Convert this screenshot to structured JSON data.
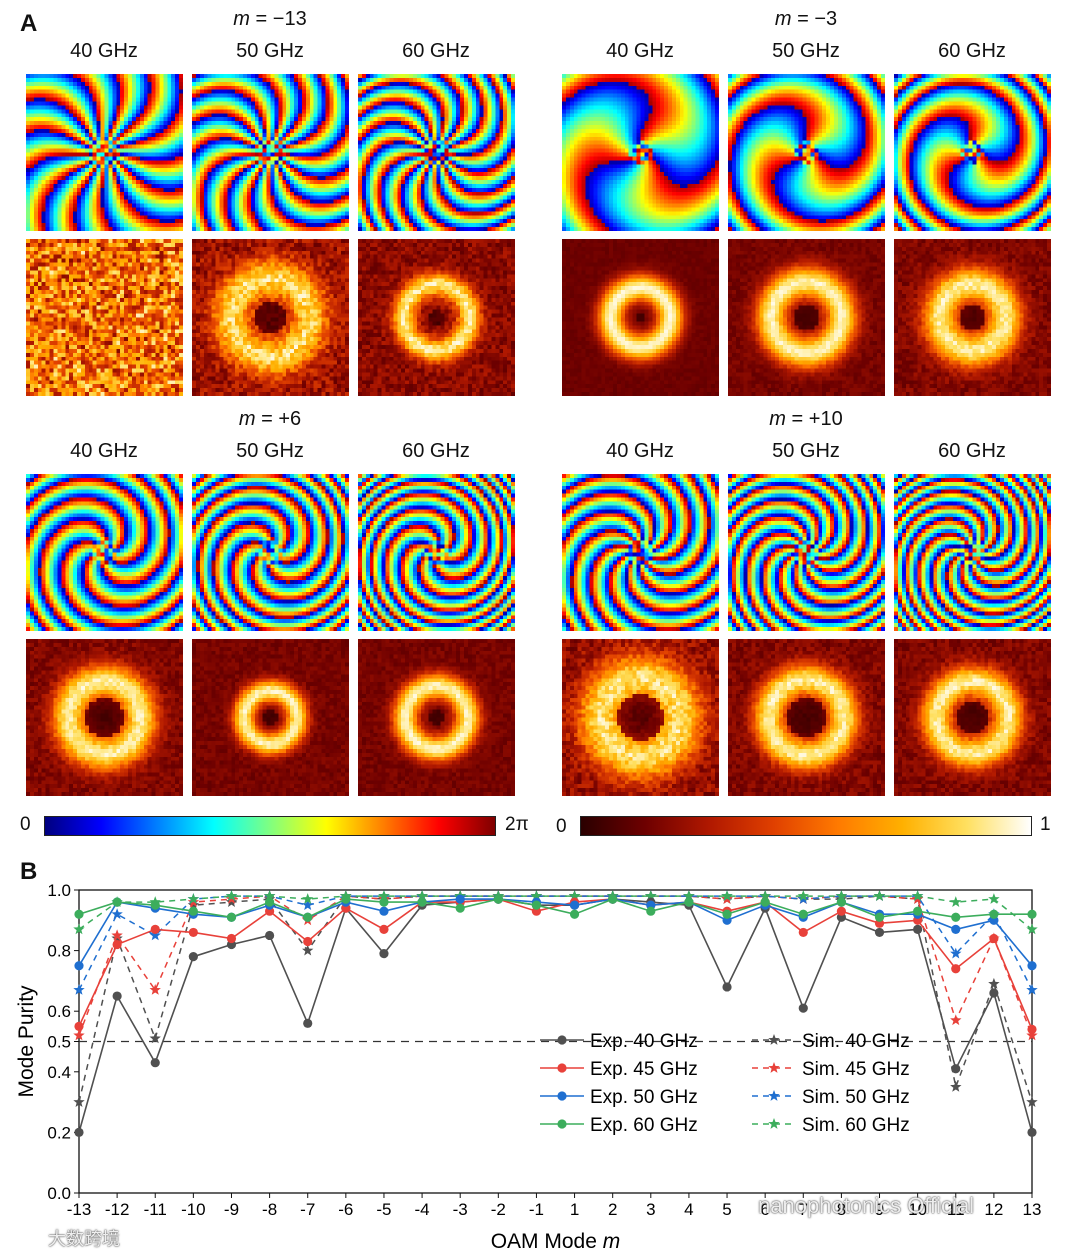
{
  "panel_a": {
    "letter": "A",
    "phase_colormap": [
      "#00007f",
      "#0000ff",
      "#0080ff",
      "#00ffff",
      "#80ff80",
      "#ffff00",
      "#ff8000",
      "#ff0000",
      "#7f0000"
    ],
    "intensity_colormap": [
      "#2a0000",
      "#6e0000",
      "#b01800",
      "#e04000",
      "#ff7a00",
      "#ffb000",
      "#ffe060",
      "#ffffff"
    ],
    "phase_bar": {
      "min": "0",
      "max": "2π"
    },
    "intensity_bar": {
      "min": "0",
      "max": "1"
    },
    "groups": [
      {
        "m_prefix": "m",
        "m_value": " = −13",
        "charge": -13,
        "freqs": [
          "40 GHz",
          "50 GHz",
          "60 GHz"
        ],
        "intensity": [
          {
            "r": 0.0,
            "w": 0.5,
            "core": 0.1,
            "noise": 0.7
          },
          {
            "r": 0.5,
            "w": 0.24,
            "core": 0.2,
            "noise": 0.3
          },
          {
            "r": 0.42,
            "w": 0.15,
            "core": 0.1,
            "noise": 0.2
          }
        ]
      },
      {
        "m_prefix": "m",
        "m_value": " = −3",
        "charge": -3,
        "freqs": [
          "40 GHz",
          "50 GHz",
          "60 GHz"
        ],
        "intensity": [
          {
            "r": 0.38,
            "w": 0.17,
            "core": 0.05,
            "noise": 0.05
          },
          {
            "r": 0.45,
            "w": 0.2,
            "core": 0.15,
            "noise": 0.1
          },
          {
            "r": 0.42,
            "w": 0.22,
            "core": 0.15,
            "noise": 0.15
          }
        ]
      },
      {
        "m_prefix": "m",
        "m_value": " = +6",
        "charge": 6,
        "freqs": [
          "40 GHz",
          "50 GHz",
          "60 GHz"
        ],
        "intensity": [
          {
            "r": 0.46,
            "w": 0.22,
            "core": 0.25,
            "noise": 0.15
          },
          {
            "r": 0.34,
            "w": 0.14,
            "core": 0.1,
            "noise": 0.1
          },
          {
            "r": 0.4,
            "w": 0.16,
            "core": 0.1,
            "noise": 0.1
          }
        ]
      },
      {
        "m_prefix": "m",
        "m_value": " = +10",
        "charge": 10,
        "freqs": [
          "40 GHz",
          "50 GHz",
          "60 GHz"
        ],
        "intensity": [
          {
            "r": 0.5,
            "w": 0.3,
            "core": 0.3,
            "noise": 0.25
          },
          {
            "r": 0.48,
            "w": 0.2,
            "core": 0.25,
            "noise": 0.15
          },
          {
            "r": 0.46,
            "w": 0.2,
            "core": 0.2,
            "noise": 0.15
          }
        ]
      }
    ]
  },
  "panel_b": {
    "letter": "B"
  },
  "chart_data": {
    "type": "line",
    "xlabel_prefix": "OAM Mode ",
    "xlabel_var": "m",
    "ylabel": "Mode Purity",
    "ylim": [
      0,
      1
    ],
    "yticks": [
      "0.0",
      "0.2",
      "0.4",
      "0.5",
      "0.6",
      "0.8",
      "1.0"
    ],
    "ytick_values": [
      0,
      0.2,
      0.4,
      0.5,
      0.6,
      0.8,
      1.0
    ],
    "categories": [
      "-13",
      "-12",
      "-11",
      "-10",
      "-9",
      "-8",
      "-7",
      "-6",
      "-5",
      "-4",
      "-3",
      "-2",
      "-1",
      "1",
      "2",
      "3",
      "4",
      "5",
      "6",
      "7",
      "8",
      "9",
      "10",
      "11",
      "12",
      "13"
    ],
    "category_values": [
      -13,
      -12,
      -11,
      -10,
      -9,
      -8,
      -7,
      -6,
      -5,
      -4,
      -3,
      -2,
      -1,
      1,
      2,
      3,
      4,
      5,
      6,
      7,
      8,
      9,
      10,
      11,
      12,
      13
    ],
    "threshold": 0.5,
    "grid": false,
    "legend_position": "bottom-right",
    "series": [
      {
        "name": "Exp. 40 GHz",
        "kind": "exp",
        "color": "#505050",
        "values": [
          0.2,
          0.65,
          0.43,
          0.78,
          0.82,
          0.85,
          0.56,
          0.94,
          0.79,
          0.95,
          0.96,
          0.97,
          0.95,
          0.95,
          0.97,
          0.96,
          0.95,
          0.68,
          0.94,
          0.61,
          0.91,
          0.86,
          0.87,
          0.41,
          0.66,
          0.2
        ]
      },
      {
        "name": "Exp. 45 GHz",
        "kind": "exp",
        "color": "#e8413a",
        "values": [
          0.55,
          0.82,
          0.87,
          0.86,
          0.84,
          0.93,
          0.83,
          0.94,
          0.87,
          0.96,
          0.96,
          0.97,
          0.93,
          0.96,
          0.97,
          0.95,
          0.96,
          0.93,
          0.96,
          0.86,
          0.93,
          0.89,
          0.9,
          0.74,
          0.84,
          0.54
        ]
      },
      {
        "name": "Exp. 50 GHz",
        "kind": "exp",
        "color": "#1f6fd0",
        "values": [
          0.75,
          0.96,
          0.94,
          0.92,
          0.91,
          0.95,
          0.91,
          0.96,
          0.93,
          0.96,
          0.97,
          0.97,
          0.96,
          0.95,
          0.97,
          0.95,
          0.96,
          0.9,
          0.95,
          0.91,
          0.96,
          0.92,
          0.92,
          0.87,
          0.9,
          0.75
        ]
      },
      {
        "name": "Exp. 60 GHz",
        "kind": "exp",
        "color": "#3cad5c",
        "values": [
          0.92,
          0.96,
          0.95,
          0.93,
          0.91,
          0.96,
          0.91,
          0.97,
          0.96,
          0.96,
          0.94,
          0.97,
          0.95,
          0.92,
          0.97,
          0.93,
          0.96,
          0.92,
          0.96,
          0.92,
          0.96,
          0.91,
          0.93,
          0.91,
          0.92,
          0.92
        ]
      },
      {
        "name": "Sim. 40 GHz",
        "kind": "sim",
        "color": "#505050",
        "values": [
          0.3,
          0.84,
          0.51,
          0.95,
          0.96,
          0.97,
          0.8,
          0.98,
          0.97,
          0.98,
          0.98,
          0.98,
          0.98,
          0.98,
          0.98,
          0.98,
          0.98,
          0.97,
          0.98,
          0.97,
          0.97,
          0.98,
          0.97,
          0.35,
          0.69,
          0.3
        ]
      },
      {
        "name": "Sim. 45 GHz",
        "kind": "sim",
        "color": "#e8413a",
        "values": [
          0.52,
          0.85,
          0.67,
          0.96,
          0.97,
          0.98,
          0.9,
          0.98,
          0.97,
          0.98,
          0.98,
          0.98,
          0.98,
          0.98,
          0.98,
          0.98,
          0.98,
          0.97,
          0.98,
          0.97,
          0.98,
          0.98,
          0.97,
          0.57,
          0.84,
          0.52
        ]
      },
      {
        "name": "Sim. 50 GHz",
        "kind": "sim",
        "color": "#1f6fd0",
        "values": [
          0.67,
          0.92,
          0.85,
          0.97,
          0.98,
          0.98,
          0.95,
          0.98,
          0.98,
          0.98,
          0.98,
          0.98,
          0.98,
          0.98,
          0.98,
          0.98,
          0.98,
          0.98,
          0.98,
          0.97,
          0.98,
          0.98,
          0.98,
          0.79,
          0.92,
          0.67
        ]
      },
      {
        "name": "Sim. 60 GHz",
        "kind": "sim",
        "color": "#3cad5c",
        "values": [
          0.87,
          0.96,
          0.96,
          0.97,
          0.98,
          0.98,
          0.97,
          0.98,
          0.98,
          0.98,
          0.98,
          0.98,
          0.98,
          0.98,
          0.98,
          0.98,
          0.98,
          0.98,
          0.98,
          0.98,
          0.98,
          0.98,
          0.98,
          0.96,
          0.97,
          0.87
        ]
      }
    ]
  },
  "watermarks": {
    "right": "nanophotonics Official",
    "left": "大数跨境"
  }
}
